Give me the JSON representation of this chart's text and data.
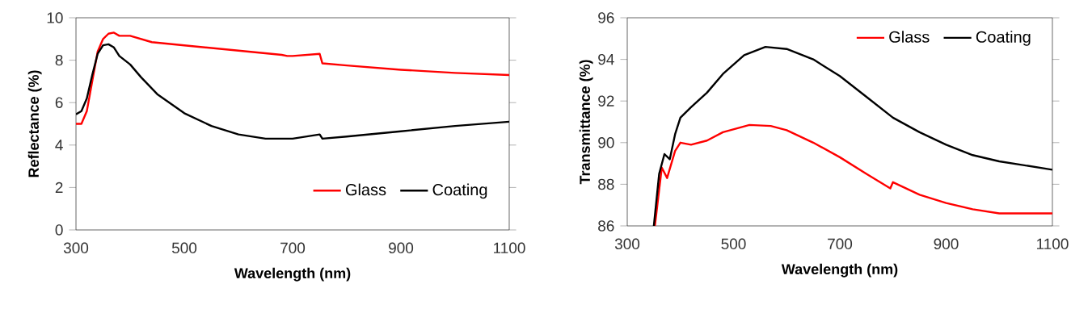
{
  "chart_data": [
    {
      "type": "line",
      "xlabel": "Wavelength (nm)",
      "ylabel": "Reflectance (%)",
      "xlim": [
        300,
        1100
      ],
      "ylim": [
        0,
        10
      ],
      "xticks": [
        300,
        500,
        700,
        900,
        1100
      ],
      "yticks": [
        0,
        2,
        4,
        6,
        8,
        10
      ],
      "legend": "bottom right",
      "series": [
        {
          "name": "Glass",
          "color": "#ff0000",
          "x": [
            300,
            310,
            320,
            330,
            340,
            350,
            360,
            370,
            380,
            390,
            400,
            420,
            440,
            500,
            600,
            680,
            690,
            700,
            750,
            755,
            800,
            900,
            1000,
            1100
          ],
          "values": [
            5.0,
            5.0,
            5.6,
            7.0,
            8.4,
            9.0,
            9.25,
            9.3,
            9.15,
            9.15,
            9.15,
            9.0,
            8.85,
            8.7,
            8.45,
            8.25,
            8.2,
            8.2,
            8.3,
            7.85,
            7.75,
            7.55,
            7.4,
            7.3
          ]
        },
        {
          "name": "Coating",
          "color": "#000000",
          "x": [
            300,
            310,
            320,
            330,
            340,
            350,
            360,
            370,
            380,
            400,
            420,
            450,
            500,
            550,
            600,
            650,
            700,
            750,
            755,
            800,
            900,
            1000,
            1100
          ],
          "values": [
            5.45,
            5.6,
            6.2,
            7.3,
            8.3,
            8.7,
            8.75,
            8.6,
            8.2,
            7.8,
            7.2,
            6.4,
            5.5,
            4.9,
            4.5,
            4.3,
            4.3,
            4.5,
            4.3,
            4.4,
            4.65,
            4.9,
            5.1
          ]
        }
      ]
    },
    {
      "type": "line",
      "xlabel": "Wavelength (nm)",
      "ylabel": "Transmittance (%)",
      "xlim": [
        300,
        1100
      ],
      "ylim": [
        86,
        96
      ],
      "xticks": [
        300,
        500,
        700,
        900,
        1100
      ],
      "yticks": [
        86,
        88,
        90,
        92,
        94,
        96
      ],
      "legend": "top right",
      "series": [
        {
          "name": "Glass",
          "color": "#ff0000",
          "x": [
            352,
            365,
            375,
            390,
            400,
            420,
            450,
            480,
            530,
            570,
            600,
            650,
            700,
            750,
            795,
            800,
            850,
            900,
            950,
            1000,
            1100
          ],
          "values": [
            86.0,
            88.8,
            88.3,
            89.6,
            90.0,
            89.9,
            90.1,
            90.5,
            90.85,
            90.8,
            90.6,
            90.0,
            89.3,
            88.5,
            87.8,
            88.1,
            87.5,
            87.1,
            86.8,
            86.6,
            86.6
          ]
        },
        {
          "name": "Coating",
          "color": "#000000",
          "x": [
            350,
            360,
            370,
            380,
            390,
            400,
            420,
            450,
            480,
            520,
            560,
            600,
            650,
            700,
            750,
            800,
            850,
            900,
            950,
            1000,
            1050,
            1100
          ],
          "values": [
            86.0,
            88.5,
            89.45,
            89.2,
            90.4,
            91.2,
            91.7,
            92.4,
            93.3,
            94.2,
            94.6,
            94.5,
            94.0,
            93.2,
            92.2,
            91.2,
            90.5,
            89.9,
            89.4,
            89.1,
            88.9,
            88.7
          ]
        }
      ]
    }
  ]
}
